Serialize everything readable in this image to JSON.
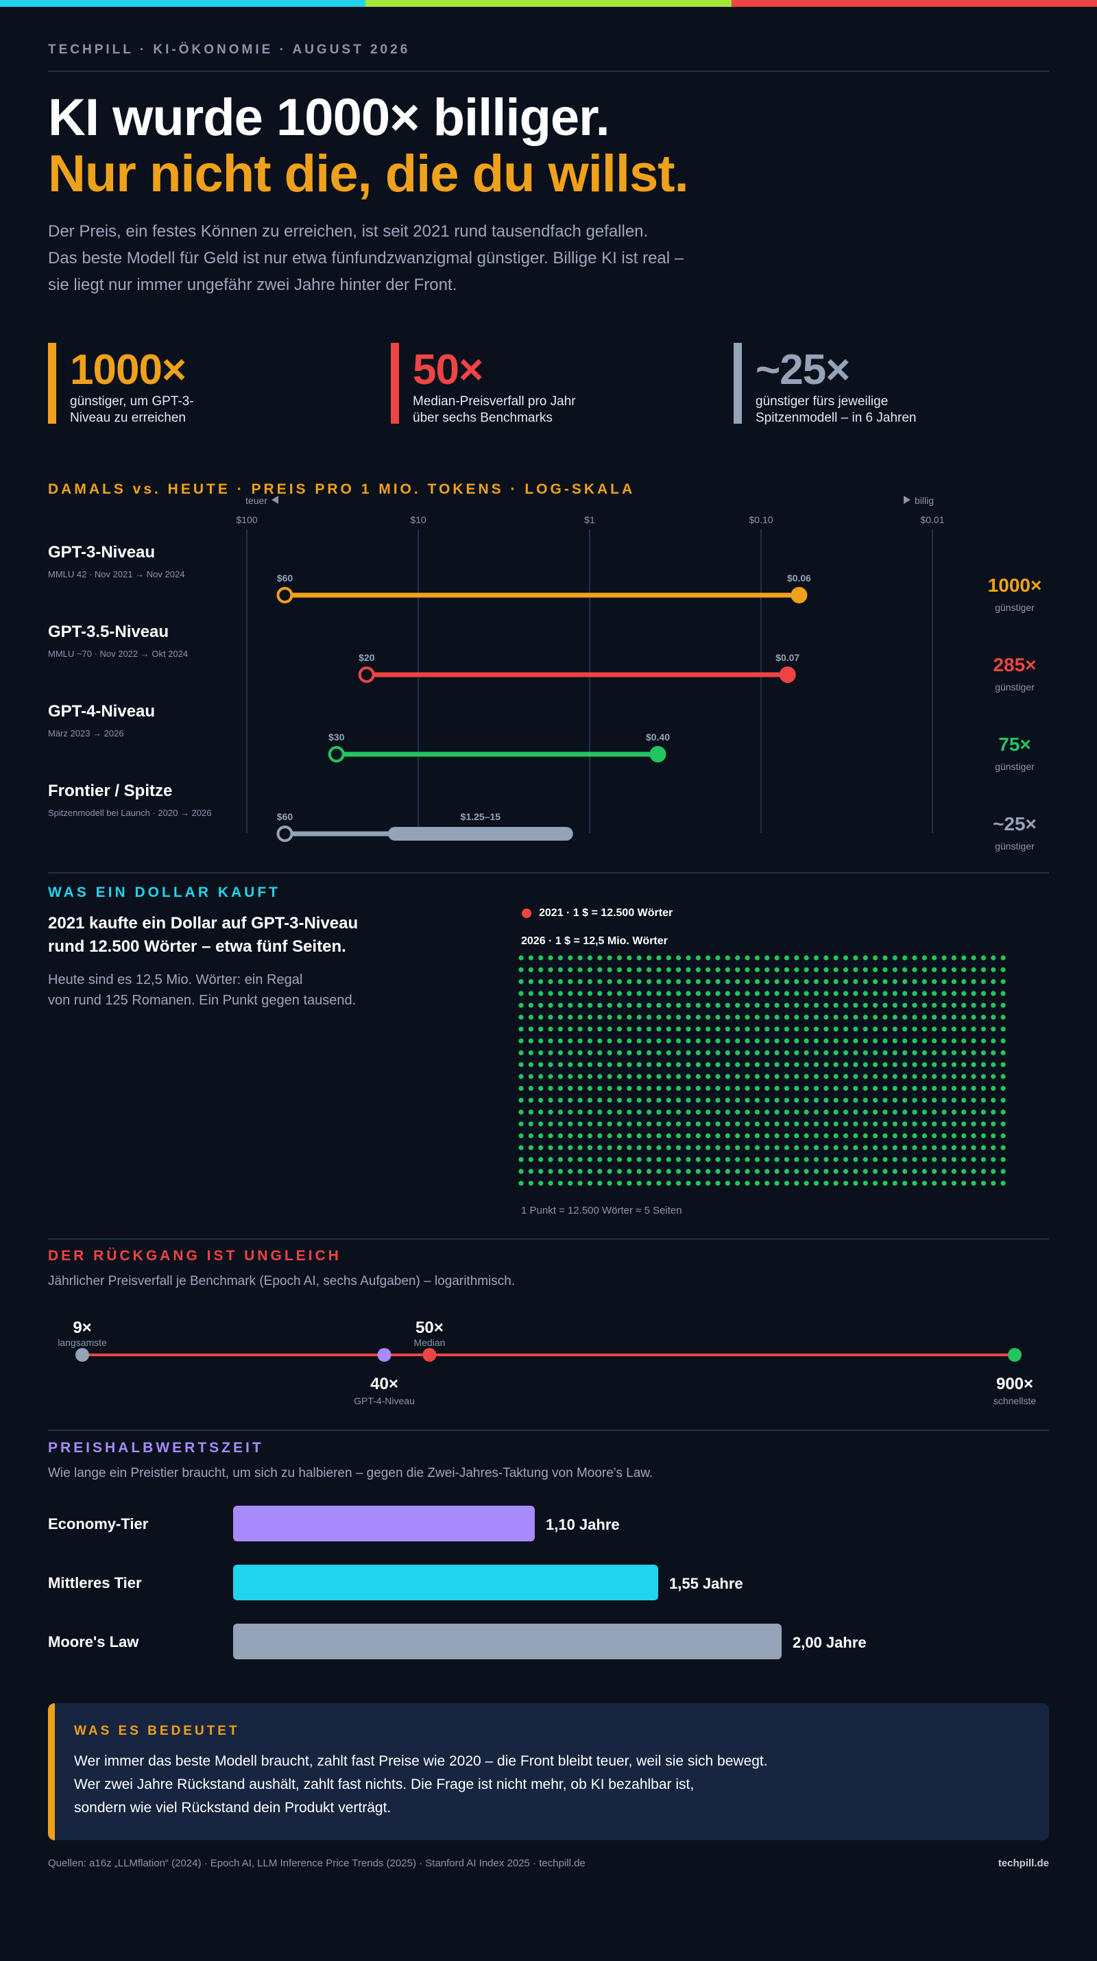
{
  "brand_colors": {
    "cyan": "#22d3ee",
    "lime": "#a3e635",
    "red": "#ef4444",
    "orange": "#f0a11b",
    "green": "#22c55e",
    "slate": "#94a3b8",
    "purple": "#a78bfa",
    "background": "#0b111c"
  },
  "kicker": "TECHPILL · KI-ÖKONOMIE · AUGUST 2026",
  "headline": {
    "line1": "KI wurde 1000× billiger.",
    "line2": "Nur nicht die, die du willst."
  },
  "lede": [
    "Der Preis, ein festes Können zu erreichen, ist seit 2021 rund tausendfach gefallen.",
    "Das beste Modell für Geld ist nur etwa fünfundzwanzigmal günstiger. Billige KI ist real –",
    "sie liegt nur immer ungefähr zwei Jahre hinter der Front."
  ],
  "stats": [
    {
      "value": "1000×",
      "desc": "günstiger, um GPT-3-Niveau zu erreichen",
      "color": "#f0a11b"
    },
    {
      "value": "50×",
      "desc": "Median-Preisverfall pro Jahr über sechs Benchmarks",
      "color": "#ef4444"
    },
    {
      "value": "~25×",
      "desc": "günstiger fürs jeweilige Spitzenmodell – in 6 Jahren",
      "color": "#94a3b8"
    }
  ],
  "section1": {
    "title": "DAMALS vs. HEUTE · PREIS PRO 1 MIO. TOKENS · LOG-SKALA"
  },
  "section2": {
    "title": "WAS EIN DOLLAR KAUFT",
    "headline": [
      "2021 kaufte ein Dollar auf GPT-3-Niveau",
      "rund 12.500 Wörter – etwa fünf Seiten."
    ],
    "text": [
      "Heute sind es 12,5 Mio. Wörter: ein Regal",
      "von rund 125 Romanen. Ein Punkt gegen tausend."
    ],
    "legend_2021": "2021 · 1 $ = 12.500 Wörter",
    "legend_2026": "2026 · 1 $ = 12,5 Mio. Wörter",
    "footnote": "1 Punkt = 12.500 Wörter ≈ 5 Seiten"
  },
  "section3": {
    "title": "DER RÜCKGANG IST UNGLEICH",
    "subtitle": "Jährlicher Preisverfall je Benchmark (Epoch AI, sechs Aufgaben) – logarithmisch."
  },
  "section4": {
    "title": "PREISHALBWERTSZEIT",
    "subtitle": "Wie lange ein Preistier braucht, um sich zu halbieren – gegen die Zwei-Jahres-Taktung von Moore's Law."
  },
  "callout": {
    "title": "WAS ES BEDEUTET",
    "lines": [
      "Wer immer das beste Modell braucht, zahlt fast Preise wie 2020 – die Front bleibt teuer, weil sie sich bewegt.",
      "Wer zwei Jahre Rückstand aushält, zahlt fast nichts. Die Frage ist nicht mehr, ob KI bezahlbar ist,",
      "sondern wie viel Rückstand dein Produkt verträgt."
    ]
  },
  "footer": {
    "sources": "Quellen: a16z „LLMflation“ (2024) · Epoch AI, LLM Inference Price Trends (2025) · Stanford AI Index 2025 · techpill.de",
    "brand": "techpill.de"
  },
  "chart_data": [
    {
      "type": "dumbbell",
      "title": "DAMALS vs. HEUTE · PREIS PRO 1 MIO. TOKENS · LOG-SKALA",
      "scale": "log",
      "axis_ticks": [
        "$100",
        "$10",
        "$1",
        "$0.10",
        "$0.01"
      ],
      "axis_tick_values": [
        100,
        10,
        1,
        0.1,
        0.01
      ],
      "axis_left_label": "teuer",
      "axis_right_label": "billig",
      "unit": "USD pro 1 Mio. Tokens",
      "series": [
        {
          "name": "GPT-3-Niveau",
          "detail": "MMLU 42 · Nov 2021 → Nov 2024",
          "start": 60,
          "start_label": "$60",
          "end": 0.06,
          "end_label": "$0.06",
          "factor": "1000×",
          "factor_label": "günstiger",
          "color": "#f0a11b"
        },
        {
          "name": "GPT-3.5-Niveau",
          "detail": "MMLU ~70 · Nov 2022 → Okt 2024",
          "start": 20,
          "start_label": "$20",
          "end": 0.07,
          "end_label": "$0.07",
          "factor": "285×",
          "factor_label": "günstiger",
          "color": "#ef4444"
        },
        {
          "name": "GPT-4-Niveau",
          "detail": "März 2023 → 2026",
          "start": 30,
          "start_label": "$30",
          "end": 0.4,
          "end_label": "$0.40",
          "factor": "75×",
          "factor_label": "günstiger",
          "color": "#22c55e"
        },
        {
          "name": "Frontier / Spitze",
          "detail": "Spitzenmodell bei Launch · 2020 → 2026",
          "start": 60,
          "start_label": "$60",
          "range": [
            1.25,
            15
          ],
          "range_label": "$1.25–15",
          "factor": "~25×",
          "factor_label": "günstiger",
          "color": "#94a3b8"
        }
      ]
    },
    {
      "type": "dot-matrix",
      "title": "WAS EIN DOLLAR KAUFT",
      "unit_per_dot": "1 Punkt = 12.500 Wörter ≈ 5 Seiten",
      "series": [
        {
          "name": "2021 · 1 $ = 12.500 Wörter",
          "words": 12500,
          "dots": 1,
          "color": "#ef4444"
        },
        {
          "name": "2026 · 1 $ = 12,5 Mio. Wörter",
          "words": 12500000,
          "dots": 1000,
          "color": "#22c55e"
        }
      ]
    },
    {
      "type": "scatter",
      "title": "DER RÜCKGANG IST UNGLEICH",
      "scale": "log",
      "x_unit": "× pro Jahr",
      "points": [
        {
          "value": 9,
          "label": "9×",
          "note": "langsamste",
          "color": "#94a3b8",
          "label_pos": "above"
        },
        {
          "value": 40,
          "label": "40×",
          "note": "GPT-4-Niveau",
          "color": "#a78bfa",
          "label_pos": "below"
        },
        {
          "value": 50,
          "label": "50×",
          "note": "Median",
          "color": "#ef4444",
          "label_pos": "above"
        },
        {
          "value": 900,
          "label": "900×",
          "note": "schnellste",
          "color": "#22c55e",
          "label_pos": "below"
        }
      ]
    },
    {
      "type": "bar",
      "title": "PREISHALBWERTSZEIT",
      "orientation": "horizontal",
      "unit": "Jahre",
      "categories": [
        "Economy-Tier",
        "Mittleres Tier",
        "Moore's Law"
      ],
      "values": [
        1.1,
        1.55,
        2.0
      ],
      "value_labels": [
        "1,10 Jahre",
        "1,55 Jahre",
        "2,00 Jahre"
      ],
      "colors": [
        "#a78bfa",
        "#22d3ee",
        "#94a3b8"
      ]
    }
  ]
}
